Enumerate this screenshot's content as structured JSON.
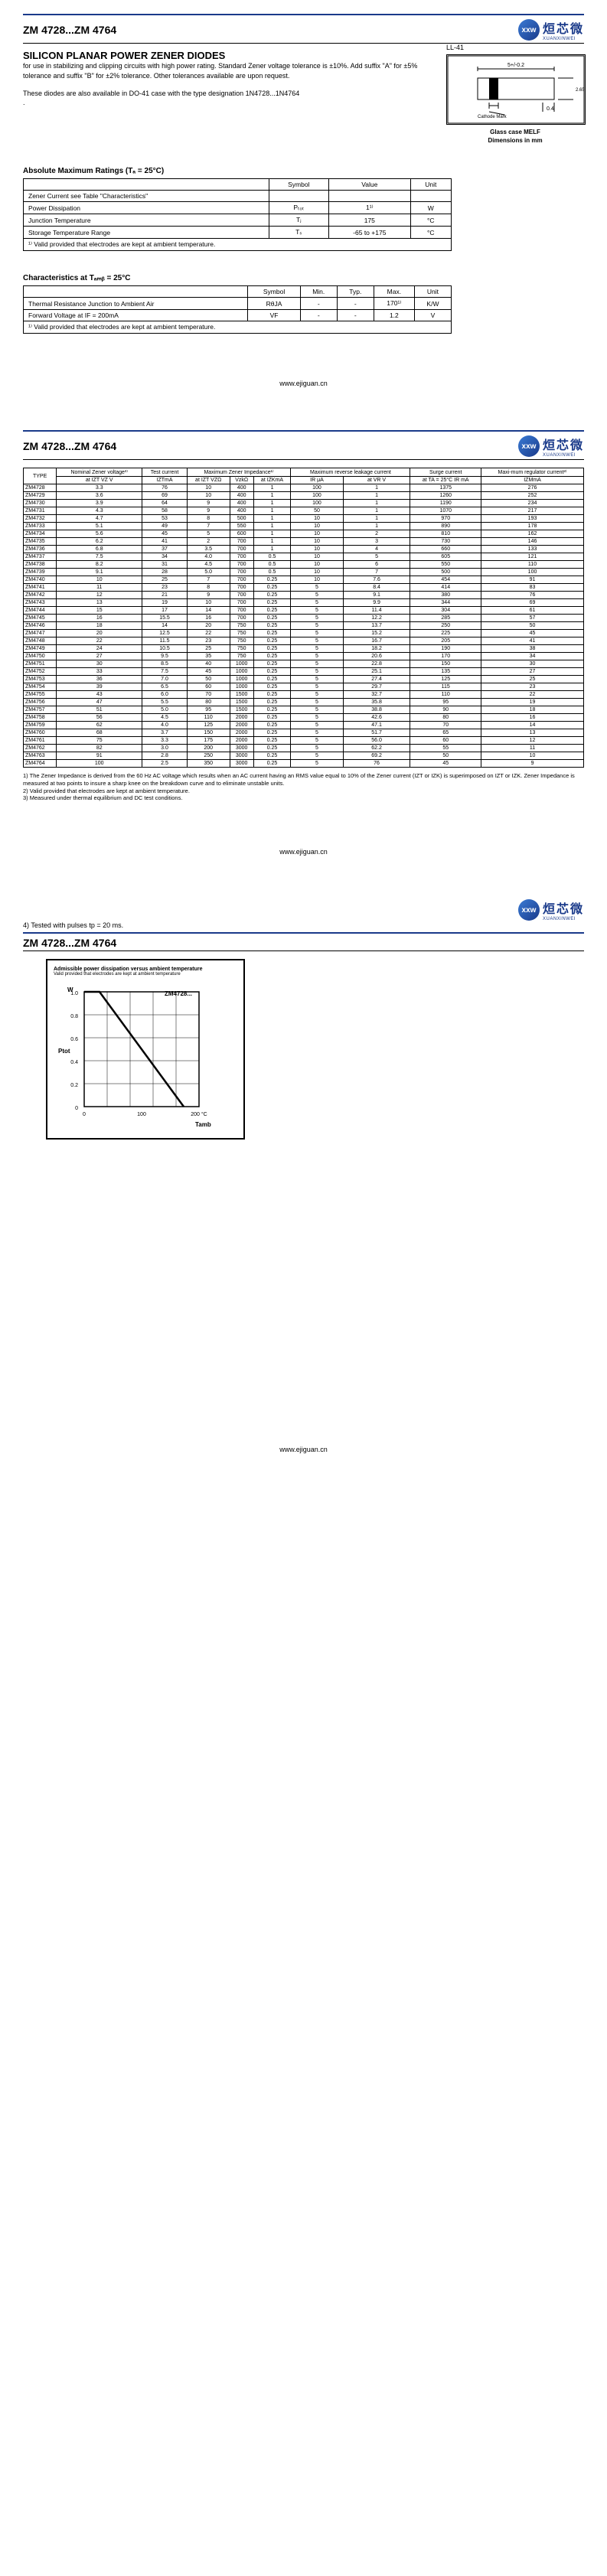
{
  "header": {
    "product_code": "ZM 4728...ZM 4764",
    "logo_cn": "烜芯微",
    "logo_en": "XUANXINWEI",
    "logo_abbr": "xxw"
  },
  "title": "SILICON PLANAR POWER ZENER DIODES",
  "package_label": "LL-41",
  "intro1": "for use in stabilizing and clipping circuits with high power rating. Standard Zener voltage tolerance is ±10%. Add suffix \"A\" for ±5% tolerance and suffix \"B\" for ±2% tolerance. Other tolerances available are upon request.",
  "intro2": "These diodes are also available in DO-41 case with the type designation 1N4728...1N4764",
  "diagram": {
    "dim1": "5+/-0.2",
    "dim2": "0.4",
    "dim3": "2.65+/-0.1",
    "cathode": "Cathode Mark",
    "caption1": "Glass case MELF",
    "caption2": "Dimensions in mm"
  },
  "ratings": {
    "title": "Absolute Maximum Ratings (Tₐ = 25°C)",
    "headers": [
      "",
      "Symbol",
      "Value",
      "Unit"
    ],
    "rows": [
      [
        "Zener Current see Table \"Characteristics\"",
        "",
        "",
        ""
      ],
      [
        "Power Dissipation",
        "Pₜₒₜ",
        "1¹⁾",
        "W"
      ],
      [
        "Junction Temperature",
        "Tⱼ",
        "175",
        "°C"
      ],
      [
        "Storage Temperature Range",
        "Tₛ",
        "-65 to +175",
        "°C"
      ]
    ],
    "note": "¹⁾ Valid provided that electrodes are kept at ambient temperature."
  },
  "char": {
    "title": "Characteristics at Tₐₘᵦ = 25°C",
    "headers": [
      "",
      "Symbol",
      "Min.",
      "Typ.",
      "Max.",
      "Unit"
    ],
    "rows": [
      [
        "Thermal Resistance Junction to Ambient Air",
        "RθJA",
        "-",
        "-",
        "170¹⁾",
        "K/W"
      ],
      [
        "Forward Voltage at IF = 200mA",
        "VF",
        "-",
        "-",
        "1.2",
        "V"
      ]
    ],
    "note": "¹⁾ Valid provided that electrodes are kept at ambient temperature."
  },
  "footer_url": "www.ejiguan.cn",
  "main_table": {
    "hdr_type": "TYPE",
    "hdr_nom": "Nominal Zener voltage³⁾",
    "hdr_test": "Test current",
    "hdr_imp": "Maximum Zener Impedance¹⁾",
    "hdr_rev": "Maximum reverse leakage current",
    "hdr_surge": "Surge current",
    "hdr_max": "Maxi-mum regulator current²⁾",
    "sub": [
      "at IZT VZ V",
      "IZTmA",
      "at IZT VZΩ",
      "VzkΩ",
      "at IZKmA",
      "IR μA",
      "at VR V",
      "at TA = 25°C IR mA",
      "IZMmA"
    ],
    "rows": [
      [
        "ZM4728",
        "3.3",
        "76",
        "10",
        "400",
        "1",
        "100",
        "1",
        "1375",
        "276"
      ],
      [
        "ZM4729",
        "3.6",
        "69",
        "10",
        "400",
        "1",
        "100",
        "1",
        "1260",
        "252"
      ],
      [
        "ZM4730",
        "3.9",
        "64",
        "9",
        "400",
        "1",
        "100",
        "1",
        "1190",
        "234"
      ],
      [
        "ZM4731",
        "4.3",
        "58",
        "9",
        "400",
        "1",
        "50",
        "1",
        "1070",
        "217"
      ],
      [
        "ZM4732",
        "4.7",
        "53",
        "8",
        "500",
        "1",
        "10",
        "1",
        "970",
        "193"
      ],
      [
        "ZM4733",
        "5.1",
        "49",
        "7",
        "550",
        "1",
        "10",
        "1",
        "890",
        "178"
      ],
      [
        "ZM4734",
        "5.6",
        "45",
        "5",
        "600",
        "1",
        "10",
        "2",
        "810",
        "162"
      ],
      [
        "ZM4735",
        "6.2",
        "41",
        "2",
        "700",
        "1",
        "10",
        "3",
        "730",
        "146"
      ],
      [
        "ZM4736",
        "6.8",
        "37",
        "3.5",
        "700",
        "1",
        "10",
        "4",
        "660",
        "133"
      ],
      [
        "ZM4737",
        "7.5",
        "34",
        "4.0",
        "700",
        "0.5",
        "10",
        "5",
        "605",
        "121"
      ],
      [
        "ZM4738",
        "8.2",
        "31",
        "4.5",
        "700",
        "0.5",
        "10",
        "6",
        "550",
        "110"
      ],
      [
        "ZM4739",
        "9.1",
        "28",
        "5.0",
        "700",
        "0.5",
        "10",
        "7",
        "500",
        "100"
      ],
      [
        "ZM4740",
        "10",
        "25",
        "7",
        "700",
        "0.25",
        "10",
        "7.6",
        "454",
        "91"
      ],
      [
        "ZM4741",
        "11",
        "23",
        "8",
        "700",
        "0.25",
        "5",
        "8.4",
        "414",
        "83"
      ],
      [
        "ZM4742",
        "12",
        "21",
        "9",
        "700",
        "0.25",
        "5",
        "9.1",
        "380",
        "76"
      ],
      [
        "ZM4743",
        "13",
        "19",
        "10",
        "700",
        "0.25",
        "5",
        "9.9",
        "344",
        "69"
      ],
      [
        "ZM4744",
        "15",
        "17",
        "14",
        "700",
        "0.25",
        "5",
        "11.4",
        "304",
        "61"
      ],
      [
        "ZM4745",
        "16",
        "15.5",
        "16",
        "700",
        "0.25",
        "5",
        "12.2",
        "285",
        "57"
      ],
      [
        "ZM4746",
        "18",
        "14",
        "20",
        "750",
        "0.25",
        "5",
        "13.7",
        "250",
        "50"
      ],
      [
        "ZM4747",
        "20",
        "12.5",
        "22",
        "750",
        "0.25",
        "5",
        "15.2",
        "225",
        "45"
      ],
      [
        "ZM4748",
        "22",
        "11.5",
        "23",
        "750",
        "0.25",
        "5",
        "16.7",
        "205",
        "41"
      ],
      [
        "ZM4749",
        "24",
        "10.5",
        "25",
        "750",
        "0.25",
        "5",
        "18.2",
        "190",
        "38"
      ],
      [
        "ZM4750",
        "27",
        "9.5",
        "35",
        "750",
        "0.25",
        "5",
        "20.6",
        "170",
        "34"
      ],
      [
        "ZM4751",
        "30",
        "8.5",
        "40",
        "1000",
        "0.25",
        "5",
        "22.8",
        "150",
        "30"
      ],
      [
        "ZM4752",
        "33",
        "7.5",
        "45",
        "1000",
        "0.25",
        "5",
        "25.1",
        "135",
        "27"
      ],
      [
        "ZM4753",
        "36",
        "7.0",
        "50",
        "1000",
        "0.25",
        "5",
        "27.4",
        "125",
        "25"
      ],
      [
        "ZM4754",
        "39",
        "6.5",
        "60",
        "1000",
        "0.25",
        "5",
        "29.7",
        "115",
        "23"
      ],
      [
        "ZM4755",
        "43",
        "6.0",
        "70",
        "1500",
        "0.25",
        "5",
        "32.7",
        "110",
        "22"
      ],
      [
        "ZM4756",
        "47",
        "5.5",
        "80",
        "1500",
        "0.25",
        "5",
        "35.8",
        "95",
        "19"
      ],
      [
        "ZM4757",
        "51",
        "5.0",
        "95",
        "1500",
        "0.25",
        "5",
        "38.8",
        "90",
        "18"
      ],
      [
        "ZM4758",
        "56",
        "4.5",
        "110",
        "2000",
        "0.25",
        "5",
        "42.6",
        "80",
        "16"
      ],
      [
        "ZM4759",
        "62",
        "4.0",
        "125",
        "2000",
        "0.25",
        "5",
        "47.1",
        "70",
        "14"
      ],
      [
        "ZM4760",
        "68",
        "3.7",
        "150",
        "2000",
        "0.25",
        "5",
        "51.7",
        "65",
        "13"
      ],
      [
        "ZM4761",
        "75",
        "3.3",
        "175",
        "2000",
        "0.25",
        "5",
        "56.0",
        "60",
        "12"
      ],
      [
        "ZM4762",
        "82",
        "3.0",
        "200",
        "3000",
        "0.25",
        "5",
        "62.2",
        "55",
        "11"
      ],
      [
        "ZM4763",
        "91",
        "2.8",
        "250",
        "3000",
        "0.25",
        "5",
        "69.2",
        "50",
        "10"
      ],
      [
        "ZM4764",
        "100",
        "2.5",
        "350",
        "3000",
        "0.25",
        "5",
        "76",
        "45",
        "9"
      ]
    ]
  },
  "footnotes": [
    "1) The Zener Impedance is derived from the 60 Hz AC voltage which results when an AC current having an RMS value equal to 10% of the Zener current (IZT or IZK) is superimposed on IZT or IZK. Zener Impedance is measured at two points to insure a sharp knee on the breakdown curve and to eliminate unstable units.",
    "2) Valid provided that electrodes are kept at ambient temperature.",
    "3) Measured under thermal equilibrium and DC test conditions."
  ],
  "note4": "4) Tested with pulses tp = 20 ms.",
  "chart": {
    "title": "Admissible power dissipation versus ambient temperature",
    "sub": "Valid provided that electrodes are kept at ambient temperature",
    "y_label": "Ptot",
    "y_unit": "W",
    "series": "ZM4728...",
    "y_ticks": [
      "1.0",
      "0.8",
      "0.6",
      "0.4",
      "0.2",
      "0"
    ],
    "x_ticks": [
      "0",
      "100",
      "200 °C"
    ],
    "x_label": "Tamb"
  }
}
